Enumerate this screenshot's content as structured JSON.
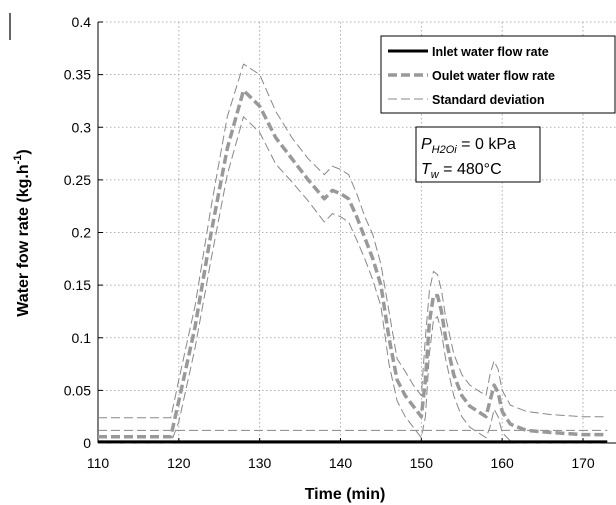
{
  "chart_data": {
    "type": "line",
    "title": "",
    "xlabel": "Time (min)",
    "ylabel": "Water fow rate (kg.h",
    "ylabel_sup": "-1",
    "ylabel_close": ")",
    "xlim": [
      110,
      173
    ],
    "ylim": [
      0,
      0.4
    ],
    "xticks": [
      110,
      120,
      130,
      140,
      150,
      160,
      170
    ],
    "yticks": [
      0,
      0.05,
      0.1,
      0.15,
      0.2,
      0.25,
      0.3,
      0.35,
      0.4
    ],
    "ytick_labels": [
      "0",
      "0.05",
      "0.1",
      "0.15",
      "0.2",
      "0.25",
      "0.3",
      "0.35",
      "0.4"
    ],
    "grid": true,
    "legend_position": "top-right",
    "series": [
      {
        "name": "Inlet water flow rate",
        "style": "solid",
        "color": "#000000",
        "x": [
          110,
          173
        ],
        "y": [
          0.001,
          0.001
        ]
      },
      {
        "name": "Oulet water flow rate",
        "style": "dashed",
        "color": "#999999",
        "x": [
          110,
          119,
          120,
          122,
          124,
          126,
          128,
          130,
          132,
          134,
          136,
          138,
          139,
          140,
          141,
          142,
          143,
          144,
          145,
          146,
          147,
          148,
          149,
          150,
          150.5,
          151,
          151.5,
          152,
          152.5,
          153,
          154,
          155,
          156,
          157,
          158,
          158.5,
          159,
          159.5,
          160,
          161,
          163,
          166,
          170,
          173
        ],
        "y": [
          0.006,
          0.006,
          0.04,
          0.11,
          0.2,
          0.28,
          0.335,
          0.32,
          0.29,
          0.27,
          0.25,
          0.232,
          0.24,
          0.237,
          0.232,
          0.215,
          0.195,
          0.175,
          0.15,
          0.1,
          0.06,
          0.045,
          0.035,
          0.025,
          0.06,
          0.115,
          0.14,
          0.14,
          0.125,
          0.1,
          0.065,
          0.045,
          0.035,
          0.03,
          0.025,
          0.04,
          0.055,
          0.048,
          0.03,
          0.018,
          0.012,
          0.01,
          0.008,
          0.008
        ]
      },
      {
        "name": "Standard deviation",
        "style": "thin-dashed",
        "color": "#888888",
        "x": [
          110,
          119,
          120,
          122,
          124,
          126,
          128,
          130,
          132,
          134,
          136,
          138,
          139,
          140,
          141,
          142,
          143,
          144,
          145,
          146,
          147,
          148,
          149,
          150,
          150.5,
          151,
          151.5,
          152,
          152.5,
          153,
          154,
          155,
          156,
          157,
          158,
          158.5,
          159,
          159.5,
          160,
          161,
          163,
          166,
          170,
          173
        ],
        "y": [
          0.024,
          0.024,
          0.06,
          0.13,
          0.225,
          0.31,
          0.36,
          0.35,
          0.315,
          0.29,
          0.27,
          0.255,
          0.263,
          0.26,
          0.255,
          0.237,
          0.215,
          0.198,
          0.17,
          0.125,
          0.08,
          0.068,
          0.055,
          0.045,
          0.1,
          0.145,
          0.163,
          0.16,
          0.145,
          0.12,
          0.085,
          0.065,
          0.055,
          0.05,
          0.045,
          0.065,
          0.078,
          0.07,
          0.05,
          0.036,
          0.03,
          0.027,
          0.025,
          0.025
        ]
      },
      {
        "name": "",
        "style": "thin-dashed",
        "color": "#888888",
        "x": [
          110,
          119,
          120,
          122,
          124,
          126,
          128,
          130,
          132,
          134,
          136,
          138,
          139,
          140,
          141,
          142,
          143,
          144,
          145,
          146,
          147,
          148,
          149,
          150,
          150.5,
          151,
          151.5,
          152,
          152.5,
          153,
          154,
          155,
          156,
          157,
          158,
          158.5,
          159,
          159.5,
          160,
          161,
          162,
          173
        ],
        "y": [
          0,
          0,
          0.02,
          0.09,
          0.175,
          0.255,
          0.31,
          0.295,
          0.265,
          0.248,
          0.23,
          0.21,
          0.218,
          0.215,
          0.21,
          0.193,
          0.175,
          0.155,
          0.13,
          0.075,
          0.04,
          0.025,
          0.015,
          0.005,
          0.025,
          0.085,
          0.117,
          0.12,
          0.105,
          0.08,
          0.045,
          0.025,
          0.015,
          0.01,
          0.005,
          0.015,
          0.032,
          0.025,
          0.01,
          0.002,
          0,
          0
        ]
      },
      {
        "name": "",
        "style": "thin-dashed",
        "color": "#888888",
        "x": [
          110,
          173
        ],
        "y": [
          0.012,
          0.012
        ]
      }
    ],
    "annotations": [
      {
        "label": "P",
        "sub": "H2Oi",
        "value": " = 0 kPa"
      },
      {
        "label": "T",
        "sub": "w",
        "value": " = 480°C"
      }
    ]
  }
}
